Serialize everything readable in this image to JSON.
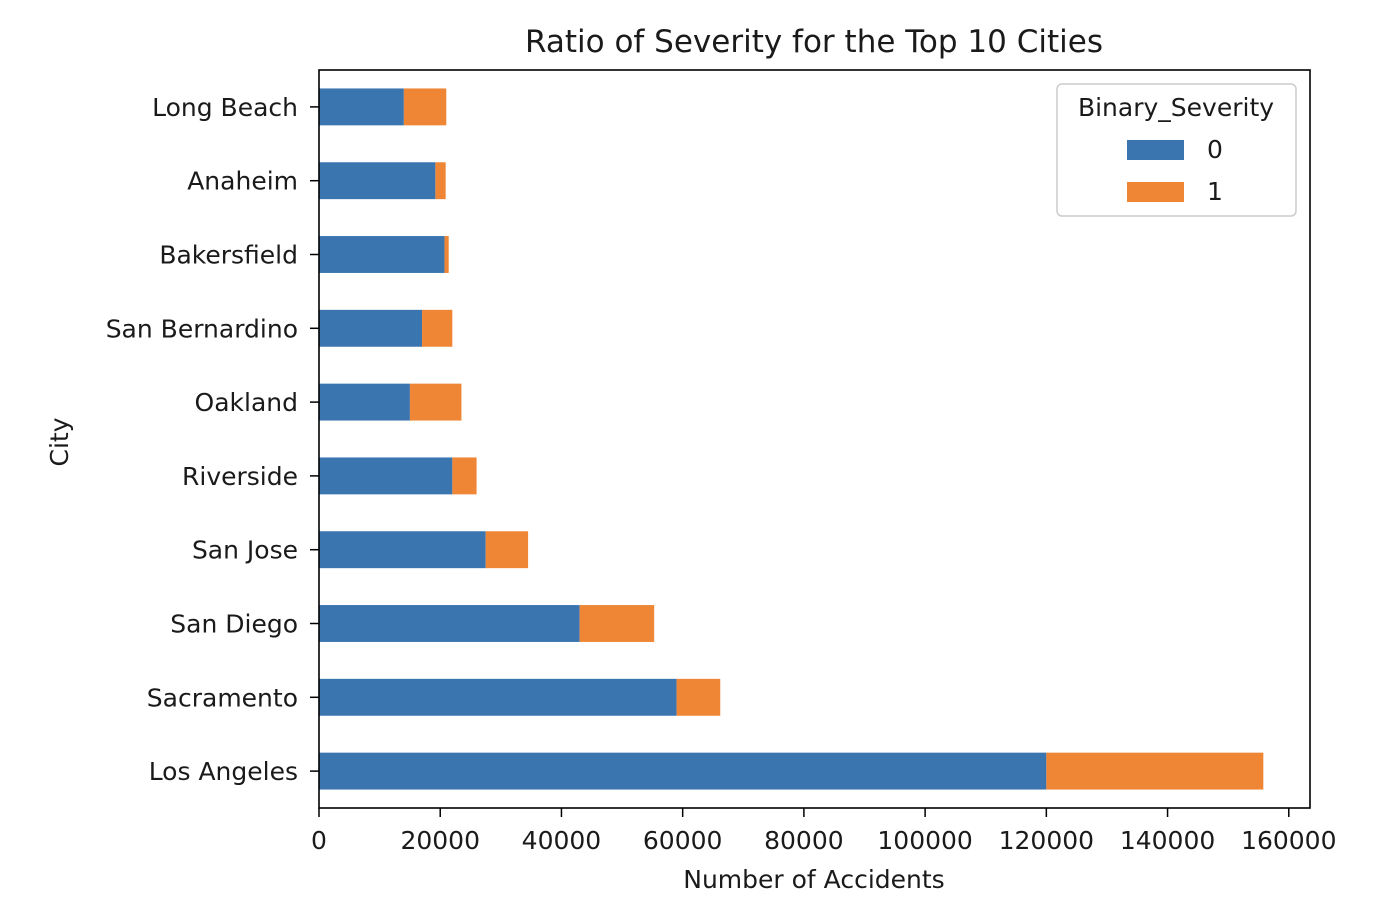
{
  "chart_data": {
    "type": "bar",
    "orientation": "horizontal",
    "stacked": true,
    "title": "Ratio of Severity for the Top 10 Cities",
    "xlabel": "Number of Accidents",
    "ylabel": "City",
    "xlim": [
      0,
      163500
    ],
    "xticks": [
      0,
      20000,
      40000,
      60000,
      80000,
      100000,
      120000,
      140000,
      160000
    ],
    "grid": false,
    "legend": {
      "title": "Binary_Severity",
      "placement": "top-right"
    },
    "categories": [
      "Long Beach",
      "Anaheim",
      "Bakersfield",
      "San Bernardino",
      "Oakland",
      "Riverside",
      "San Jose",
      "San Diego",
      "Sacramento",
      "Los Angeles"
    ],
    "series": [
      {
        "name": "0",
        "color": "#3a75b0",
        "values": [
          14000,
          19200,
          20700,
          17000,
          15000,
          22000,
          27500,
          43000,
          59000,
          120000
        ]
      },
      {
        "name": "1",
        "color": "#ef8636",
        "values": [
          7000,
          1700,
          700,
          5000,
          8500,
          4000,
          7000,
          12300,
          7200,
          35800
        ]
      }
    ]
  }
}
